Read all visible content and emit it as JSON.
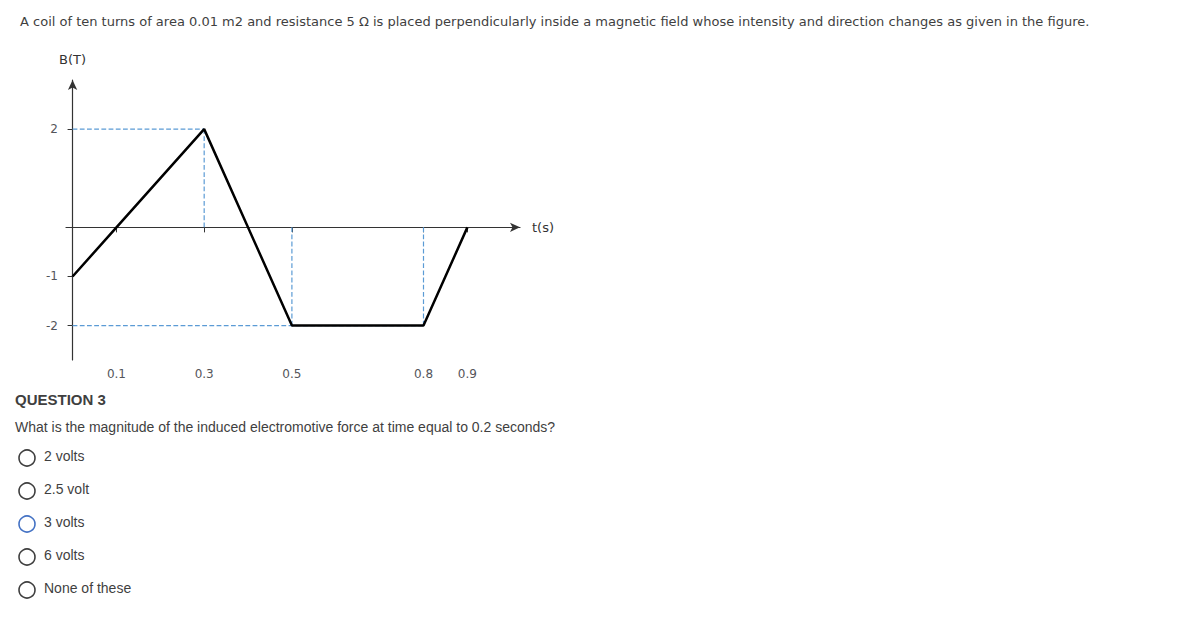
{
  "chart_data": {
    "type": "line",
    "title": "A coil of ten turns of area 0.01 m2 and resistance 5 Ω is placed perpendicularly inside a magnetic field whose intensity and direction changes as given in the figure.",
    "xlabel": "t(s)",
    "ylabel": "B(T)",
    "x": [
      0.0,
      0.1,
      0.3,
      0.5,
      0.8,
      0.9
    ],
    "values": [
      -1,
      0,
      2,
      -2,
      -2,
      0
    ],
    "color": "#000000",
    "marker": "none",
    "line_style": "solid",
    "xlim": [
      -0.015,
      1.02
    ],
    "ylim": [
      -2.7,
      3.0
    ],
    "xticks": [
      0.1,
      0.3,
      0.5,
      0.8,
      0.9
    ],
    "yticks": [
      -2,
      -1,
      2
    ],
    "grid": false,
    "guide_lines": {
      "color": "#5b9bd5",
      "line_style": "dashed",
      "segments": [
        {
          "x": [
            0.0,
            0.3
          ],
          "y": [
            2,
            2
          ]
        },
        {
          "x": [
            0.0,
            0.8
          ],
          "y": [
            -2,
            -2
          ]
        },
        {
          "x": [
            0.3,
            0.3
          ],
          "y": [
            0,
            2
          ]
        },
        {
          "x": [
            0.5,
            0.5
          ],
          "y": [
            -2,
            0
          ]
        },
        {
          "x": [
            0.8,
            0.8
          ],
          "y": [
            -2,
            0
          ]
        }
      ]
    }
  },
  "question": {
    "title": "QUESTION 3",
    "text": "What is the magnitude of the induced electromotive force at time equal to 0.2 seconds?",
    "options": [
      "2 volts",
      "2.5 volt",
      "3 volts",
      "6 volts",
      "None of these"
    ],
    "selected": "3 volts",
    "color": "#3f3f3f",
    "selected_color": "#4472c4"
  }
}
